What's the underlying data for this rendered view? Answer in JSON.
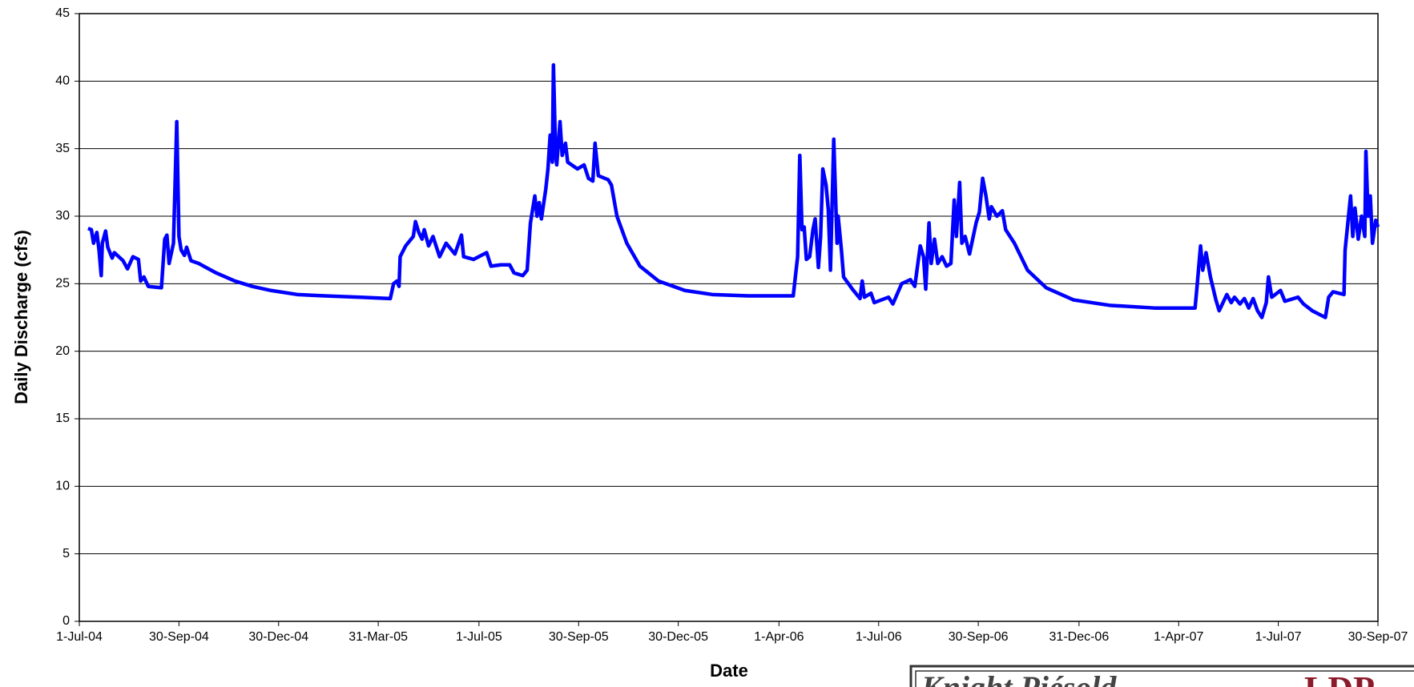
{
  "chart_data": {
    "type": "line",
    "y_label": "Daily Discharge (cfs)",
    "x_label": "Date",
    "color": "#0000ff",
    "grid": true,
    "ylim": [
      0,
      45
    ],
    "yticks": [
      0,
      5,
      10,
      15,
      20,
      25,
      30,
      35,
      40,
      45
    ],
    "xlim": [
      "2004-07-01",
      "2007-09-30"
    ],
    "xticks": [
      {
        "value": "2004-07-01",
        "label": "1-Jul-04"
      },
      {
        "value": "2004-09-30",
        "label": "30-Sep-04"
      },
      {
        "value": "2004-12-30",
        "label": "30-Dec-04"
      },
      {
        "value": "2005-03-31",
        "label": "31-Mar-05"
      },
      {
        "value": "2005-07-01",
        "label": "1-Jul-05"
      },
      {
        "value": "2005-09-30",
        "label": "30-Sep-05"
      },
      {
        "value": "2005-12-30",
        "label": "30-Dec-05"
      },
      {
        "value": "2006-04-01",
        "label": "1-Apr-06"
      },
      {
        "value": "2006-07-01",
        "label": "1-Jul-06"
      },
      {
        "value": "2006-09-30",
        "label": "30-Sep-06"
      },
      {
        "value": "2006-12-31",
        "label": "31-Dec-06"
      },
      {
        "value": "2007-04-01",
        "label": "1-Apr-07"
      },
      {
        "value": "2007-07-01",
        "label": "1-Jul-07"
      },
      {
        "value": "2007-09-30",
        "label": "30-Sep-07"
      }
    ],
    "x": [
      "2004-07-09",
      "2004-07-12",
      "2004-07-14",
      "2004-07-17",
      "2004-07-19",
      "2004-07-21",
      "2004-07-22",
      "2004-07-25",
      "2004-07-27",
      "2004-07-31",
      "2004-08-02",
      "2004-08-10",
      "2004-08-14",
      "2004-08-19",
      "2004-08-24",
      "2004-08-26",
      "2004-08-29",
      "2004-09-02",
      "2004-09-14",
      "2004-09-17",
      "2004-09-19",
      "2004-09-21",
      "2004-09-25",
      "2004-09-28",
      "2004-09-30",
      "2004-10-02",
      "2004-10-05",
      "2004-10-07",
      "2004-10-11",
      "2004-10-18",
      "2004-11-03",
      "2004-11-20",
      "2004-12-06",
      "2004-12-23",
      "2005-01-16",
      "2005-02-10",
      "2005-03-15",
      "2005-04-11",
      "2005-04-14",
      "2005-04-17",
      "2005-04-19",
      "2005-04-20",
      "2005-04-25",
      "2005-05-02",
      "2005-05-04",
      "2005-05-07",
      "2005-05-10",
      "2005-05-12",
      "2005-05-16",
      "2005-05-20",
      "2005-05-26",
      "2005-06-01",
      "2005-06-09",
      "2005-06-15",
      "2005-06-17",
      "2005-06-26",
      "2005-07-08",
      "2005-07-12",
      "2005-07-21",
      "2005-07-29",
      "2005-08-02",
      "2005-08-10",
      "2005-08-14",
      "2005-08-17",
      "2005-08-21",
      "2005-08-23",
      "2005-08-25",
      "2005-08-27",
      "2005-08-31",
      "2005-09-02",
      "2005-09-04",
      "2005-09-06",
      "2005-09-07",
      "2005-09-09",
      "2005-09-10",
      "2005-09-13",
      "2005-09-15",
      "2005-09-18",
      "2005-09-20",
      "2005-09-29",
      "2005-10-05",
      "2005-10-09",
      "2005-10-13",
      "2005-10-15",
      "2005-10-18",
      "2005-10-27",
      "2005-10-30",
      "2005-11-04",
      "2005-11-13",
      "2005-11-25",
      "2005-12-12",
      "2006-01-05",
      "2006-01-30",
      "2006-03-04",
      "2006-04-14",
      "2006-04-18",
      "2006-04-20",
      "2006-04-22",
      "2006-04-24",
      "2006-04-26",
      "2006-04-29",
      "2006-05-02",
      "2006-05-04",
      "2006-05-07",
      "2006-05-09",
      "2006-05-11",
      "2006-05-14",
      "2006-05-16",
      "2006-05-18",
      "2006-05-21",
      "2006-05-24",
      "2006-05-25",
      "2006-05-28",
      "2006-05-30",
      "2006-06-07",
      "2006-06-14",
      "2006-06-16",
      "2006-06-18",
      "2006-06-24",
      "2006-06-27",
      "2006-07-10",
      "2006-07-14",
      "2006-07-22",
      "2006-07-30",
      "2006-08-03",
      "2006-08-08",
      "2006-08-11",
      "2006-08-13",
      "2006-08-16",
      "2006-08-18",
      "2006-08-21",
      "2006-08-24",
      "2006-08-28",
      "2006-09-01",
      "2006-09-05",
      "2006-09-08",
      "2006-09-10",
      "2006-09-13",
      "2006-09-15",
      "2006-09-18",
      "2006-09-22",
      "2006-09-28",
      "2006-10-01",
      "2006-10-04",
      "2006-10-07",
      "2006-10-10",
      "2006-10-12",
      "2006-10-17",
      "2006-10-22",
      "2006-10-25",
      "2006-11-02",
      "2006-11-14",
      "2006-12-01",
      "2006-12-26",
      "2007-01-28",
      "2007-03-10",
      "2007-04-16",
      "2007-04-18",
      "2007-04-21",
      "2007-04-23",
      "2007-04-26",
      "2007-04-30",
      "2007-05-05",
      "2007-05-08",
      "2007-05-15",
      "2007-05-19",
      "2007-05-22",
      "2007-05-27",
      "2007-05-31",
      "2007-06-04",
      "2007-06-08",
      "2007-06-12",
      "2007-06-16",
      "2007-06-20",
      "2007-06-22",
      "2007-06-25",
      "2007-07-03",
      "2007-07-07",
      "2007-07-19",
      "2007-07-24",
      "2007-08-01",
      "2007-08-13",
      "2007-08-16",
      "2007-08-20",
      "2007-08-30",
      "2007-08-31",
      "2007-09-05",
      "2007-09-07",
      "2007-09-09",
      "2007-09-12",
      "2007-09-15",
      "2007-09-18",
      "2007-09-19",
      "2007-09-21",
      "2007-09-23",
      "2007-09-25",
      "2007-09-28",
      "2007-09-30"
    ],
    "values": [
      29.1,
      29.0,
      28.0,
      28.8,
      27.5,
      25.6,
      28.0,
      28.9,
      27.7,
      26.9,
      27.3,
      26.7,
      26.1,
      27.0,
      26.8,
      25.2,
      25.5,
      24.8,
      24.7,
      28.3,
      28.6,
      26.5,
      28.0,
      37.0,
      28.5,
      27.5,
      27.1,
      27.7,
      26.7,
      26.5,
      25.8,
      25.2,
      24.8,
      24.5,
      24.2,
      24.1,
      24.0,
      23.9,
      25.0,
      25.2,
      24.8,
      27.0,
      27.8,
      28.5,
      29.6,
      28.8,
      28.3,
      29.0,
      27.8,
      28.5,
      27.0,
      28.0,
      27.2,
      28.6,
      27.0,
      26.8,
      27.3,
      26.3,
      26.4,
      26.4,
      25.8,
      25.6,
      26.0,
      29.5,
      31.5,
      30.0,
      31.0,
      29.8,
      32.0,
      33.5,
      36.0,
      34.0,
      41.2,
      34.5,
      33.8,
      37.0,
      34.5,
      35.4,
      34.0,
      33.5,
      33.8,
      32.8,
      32.6,
      35.4,
      33.0,
      32.7,
      32.3,
      30.0,
      28.0,
      26.3,
      25.2,
      24.5,
      24.2,
      24.1,
      24.1,
      27.0,
      34.5,
      29.0,
      29.2,
      26.8,
      27.0,
      29.0,
      29.8,
      26.2,
      28.5,
      33.5,
      32.3,
      30.5,
      26.0,
      35.7,
      28.0,
      30.0,
      27.5,
      25.5,
      24.6,
      23.9,
      25.2,
      24.0,
      24.3,
      23.6,
      24.0,
      23.5,
      25.0,
      25.3,
      24.8,
      27.8,
      27.0,
      24.6,
      29.5,
      26.5,
      28.3,
      26.5,
      27.0,
      26.3,
      26.5,
      31.2,
      28.5,
      32.5,
      28.0,
      28.5,
      27.2,
      29.5,
      30.3,
      32.8,
      31.5,
      29.8,
      30.7,
      30.0,
      30.4,
      29.0,
      28.0,
      26.0,
      24.7,
      23.8,
      23.4,
      23.2,
      23.2,
      25.0,
      27.8,
      26.0,
      27.3,
      25.5,
      23.8,
      23.0,
      24.2,
      23.6,
      24.0,
      23.5,
      23.9,
      23.2,
      23.9,
      23.0,
      22.5,
      23.6,
      25.5,
      24.0,
      24.5,
      23.7,
      24.0,
      23.5,
      23.0,
      22.5,
      24.0,
      24.4,
      24.2,
      27.5,
      31.5,
      28.5,
      30.6,
      28.3,
      30.0,
      28.5,
      34.8,
      30.0,
      31.5,
      28.0,
      29.7,
      29.2
    ]
  },
  "logo": {
    "text": "Knight Piésold",
    "mark": "LDP"
  }
}
